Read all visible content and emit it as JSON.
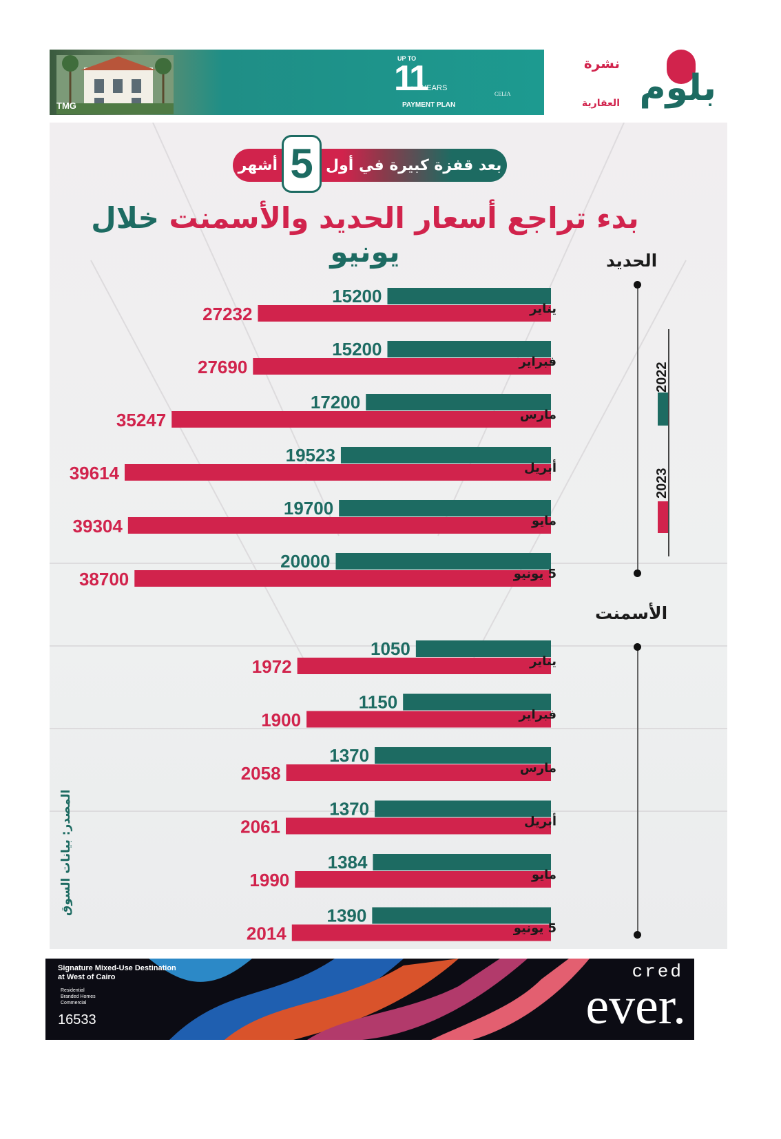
{
  "top_ad": {
    "brand": "TMG",
    "up_to": "UP TO",
    "number": "11",
    "years": "YEARS",
    "payment": "PAYMENT PLAN",
    "project": "CELIA"
  },
  "logo": {
    "nashra": "نشرة",
    "name": "بلوم",
    "aqaria": "العقارية"
  },
  "badge": {
    "before": "بعد قفزة كبيرة في أول",
    "number": "5",
    "after": "أشهر"
  },
  "headline": {
    "part1": "بدء تراجع ",
    "part2": "أسعار الحديد والأسمنت",
    "part3": " خلال يونيو"
  },
  "sections": {
    "steel": "الحديد",
    "cement": "الأسمنت"
  },
  "legend": [
    "2022",
    "2023"
  ],
  "source": "المصدر: بيانات السوق",
  "colors": {
    "y2022": "#1d6b62",
    "y2023": "#d1234c"
  },
  "chart_data": [
    {
      "type": "bar",
      "orientation": "horizontal",
      "title": "الحديد",
      "categories": [
        "يناير",
        "فبراير",
        "مارس",
        "أبريل",
        "مايو",
        "5 يونيو"
      ],
      "series": [
        {
          "name": "2022",
          "values": [
            15200,
            15200,
            17200,
            19523,
            19700,
            20000
          ]
        },
        {
          "name": "2023",
          "values": [
            27232,
            27690,
            35247,
            39614,
            39304,
            38700
          ]
        }
      ]
    },
    {
      "type": "bar",
      "orientation": "horizontal",
      "title": "الأسمنت",
      "categories": [
        "يناير",
        "فبراير",
        "مارس",
        "أبريل",
        "مايو",
        "5 يونيو"
      ],
      "series": [
        {
          "name": "2022",
          "values": [
            1050,
            1150,
            1370,
            1370,
            1384,
            1390
          ]
        },
        {
          "name": "2023",
          "values": [
            1972,
            1900,
            2058,
            2061,
            1990,
            2014
          ]
        }
      ]
    }
  ],
  "bottom_ad": {
    "line1": "Signature Mixed-Use Destination",
    "line2": "at West of Cairo",
    "small1": "Residential",
    "small2": "Branded Homes",
    "small3": "Commercial",
    "code": "16533",
    "cred": "cred",
    "ever": "ever."
  }
}
